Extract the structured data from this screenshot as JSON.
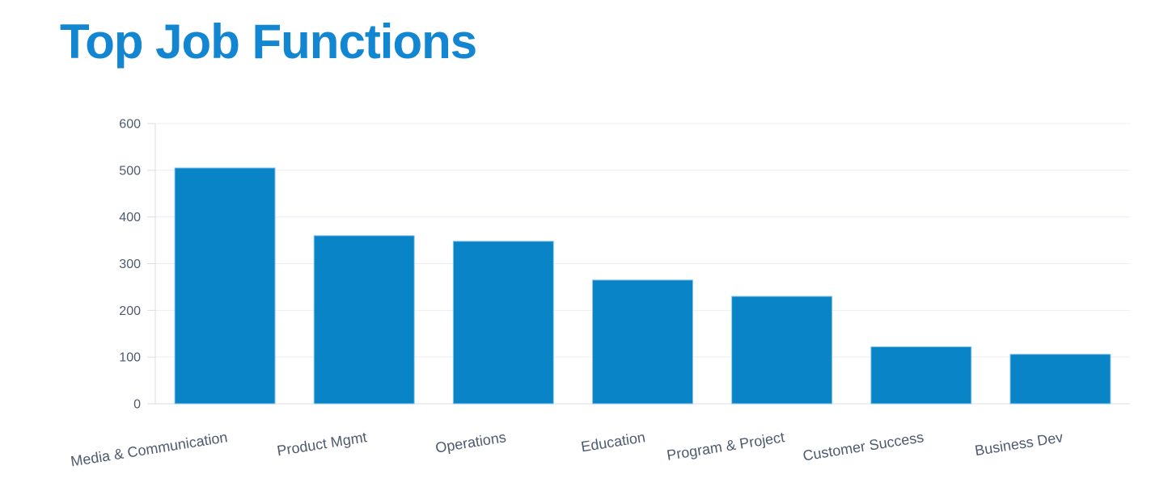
{
  "chart_data": {
    "type": "bar",
    "title": "Top Job Functions",
    "categories": [
      "Media & Communication",
      "Product Mgmt",
      "Operations",
      "Education",
      "Program & Project",
      "Customer Success",
      "Business Dev"
    ],
    "values": [
      505,
      360,
      348,
      265,
      230,
      122,
      106
    ],
    "xlabel": "",
    "ylabel": "",
    "ylim": [
      0,
      600
    ],
    "ytick_step": 100,
    "yticks": [
      0,
      100,
      200,
      300,
      400,
      500,
      600
    ],
    "grid": "horizontal",
    "legend": "none",
    "label_rotation_deg": -9,
    "colors": {
      "title": "#1386d1",
      "bar": "#0884c7",
      "bar_border": "#8fc8ea",
      "grid_line": "#eaedf4",
      "axis_line": "#d9dee6",
      "tick_label": "#4e5a6e",
      "background": "#ffffff"
    }
  }
}
